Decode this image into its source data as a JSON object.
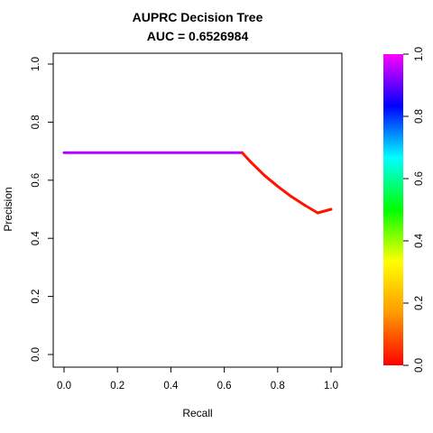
{
  "chart_data": {
    "type": "line",
    "title": "AUPRC Decision Tree",
    "subtitle": "AUC = 0.6526984",
    "xlabel": "Recall",
    "ylabel": "Precision",
    "xlim": [
      0,
      1
    ],
    "ylim": [
      0,
      1
    ],
    "x_ticks": [
      "0.0",
      "0.2",
      "0.4",
      "0.6",
      "0.8",
      "1.0"
    ],
    "y_ticks": [
      "0.0",
      "0.2",
      "0.4",
      "0.6",
      "0.8",
      "1.0"
    ],
    "grid": false,
    "legend": "colorbar-right",
    "colorbar": {
      "range": [
        0,
        1
      ],
      "ticks": [
        "0.0",
        "0.2",
        "0.4",
        "0.6",
        "0.8",
        "1.0"
      ],
      "colors": [
        "#ff0000",
        "#ff9900",
        "#ffff00",
        "#00ff00",
        "#00ffff",
        "#0000ff",
        "#ff00ff"
      ]
    },
    "series": [
      {
        "color_by_threshold": true,
        "points": [
          {
            "x": 0.0,
            "y": 0.695,
            "t": 0.95
          },
          {
            "x": 0.667,
            "y": 0.695,
            "t": 0.95
          },
          {
            "x": 0.667,
            "y": 0.695,
            "t": 0.02
          },
          {
            "x": 0.7,
            "y": 0.662,
            "t": 0.02
          },
          {
            "x": 0.75,
            "y": 0.617,
            "t": 0.02
          },
          {
            "x": 0.8,
            "y": 0.579,
            "t": 0.02
          },
          {
            "x": 0.85,
            "y": 0.5445,
            "t": 0.02
          },
          {
            "x": 0.9,
            "y": 0.5147,
            "t": 0.02
          },
          {
            "x": 0.95,
            "y": 0.4876,
            "t": 0.02
          },
          {
            "x": 1.0,
            "y": 0.5,
            "t": 0.02
          }
        ]
      }
    ]
  }
}
